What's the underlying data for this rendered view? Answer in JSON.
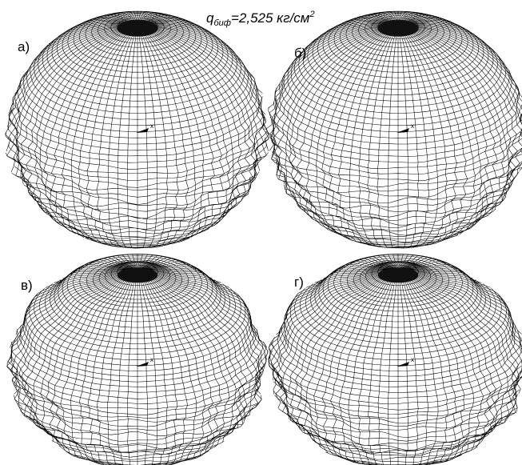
{
  "title": {
    "symbol": "q",
    "subscript": "биф",
    "text": "=2,525 кг/см",
    "superscript": "2"
  },
  "panels": [
    {
      "label": "а)"
    },
    {
      "label": "б)"
    },
    {
      "label": "в)"
    },
    {
      "label": "г)"
    }
  ],
  "axis_label": "x"
}
